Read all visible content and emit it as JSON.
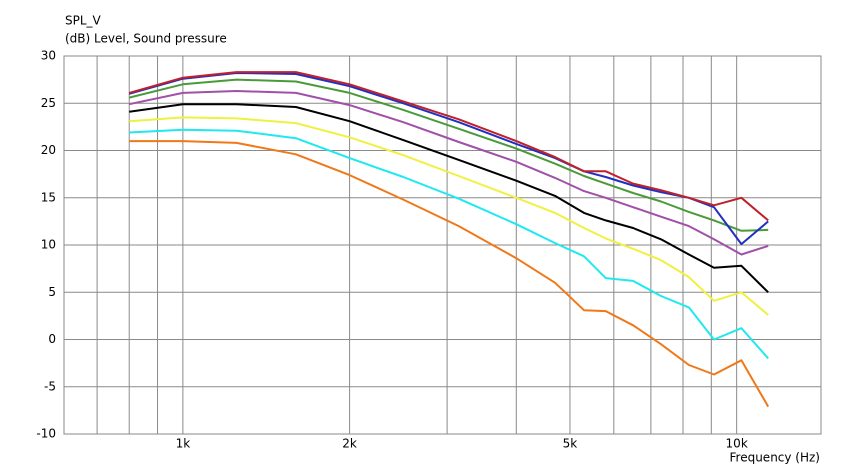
{
  "chart_data": {
    "type": "line",
    "title": "SPL_V",
    "ylabel": "(dB)  Level, Sound pressure",
    "xlabel": "Frequency  (Hz)",
    "log_x": true,
    "grid": true,
    "xlim": [
      610,
      14200
    ],
    "ylim": [
      -10,
      30
    ],
    "yticks": [
      -10,
      -5,
      0,
      5,
      10,
      15,
      20,
      25,
      30
    ],
    "xticks": [
      {
        "value": 1000,
        "label": "1k"
      },
      {
        "value": 2000,
        "label": "2k"
      },
      {
        "value": 5000,
        "label": "5k"
      },
      {
        "value": 10000,
        "label": "10k"
      }
    ],
    "xminor": [
      700,
      800,
      900,
      3000,
      4000,
      6000,
      7000,
      8000,
      9000
    ],
    "x": [
      800,
      1000,
      1250,
      1600,
      2000,
      2500,
      3150,
      4000,
      4700,
      5300,
      5800,
      6500,
      7300,
      8200,
      9100,
      10200,
      11400
    ],
    "series": [
      {
        "color": "#c0202a",
        "values": [
          26.1,
          27.7,
          28.3,
          28.3,
          27,
          25.2,
          23.3,
          21,
          19.3,
          17.8,
          17.8,
          16.5,
          15.8,
          15,
          14.2,
          15,
          12.6
        ]
      },
      {
        "color": "#2030c0",
        "values": [
          26,
          27.6,
          28.2,
          28.1,
          26.8,
          25,
          23,
          20.7,
          19.2,
          17.8,
          17.2,
          16.3,
          15.6,
          15,
          14,
          10.1,
          12.5
        ]
      },
      {
        "color": "#4a9a3a",
        "values": [
          25.6,
          27,
          27.5,
          27.3,
          26.1,
          24.3,
          22.3,
          20.2,
          18.6,
          17.3,
          16.5,
          15.5,
          14.6,
          13.5,
          12.6,
          11.5,
          11.6
        ]
      },
      {
        "color": "#a050a8",
        "values": [
          24.9,
          26.1,
          26.3,
          26.1,
          24.8,
          23,
          20.9,
          18.8,
          17.1,
          15.7,
          15,
          14,
          13,
          12,
          10.6,
          9,
          9.9
        ]
      },
      {
        "color": "#000000",
        "values": [
          24.1,
          24.9,
          24.9,
          24.6,
          23.1,
          21.1,
          19,
          16.8,
          15.2,
          13.4,
          12.6,
          11.8,
          10.6,
          9,
          7.6,
          7.8,
          5
        ]
      },
      {
        "color": "#f0f040",
        "values": [
          23.1,
          23.5,
          23.4,
          22.9,
          21.4,
          19.5,
          17.3,
          15,
          13.4,
          11.8,
          10.7,
          9.6,
          8.4,
          6.6,
          4.1,
          5,
          2.6
        ]
      },
      {
        "color": "#20e8f0",
        "values": [
          21.9,
          22.2,
          22.1,
          21.3,
          19.2,
          17.2,
          14.9,
          12.2,
          10.2,
          8.8,
          6.5,
          6.2,
          4.6,
          3.4,
          0,
          1.2,
          -2
        ]
      },
      {
        "color": "#f07818",
        "values": [
          21,
          21,
          20.8,
          19.6,
          17.4,
          14.8,
          12,
          8.6,
          6,
          3.1,
          3,
          1.5,
          -0.5,
          -2.7,
          -3.7,
          -2.2,
          -7.1
        ]
      }
    ]
  }
}
